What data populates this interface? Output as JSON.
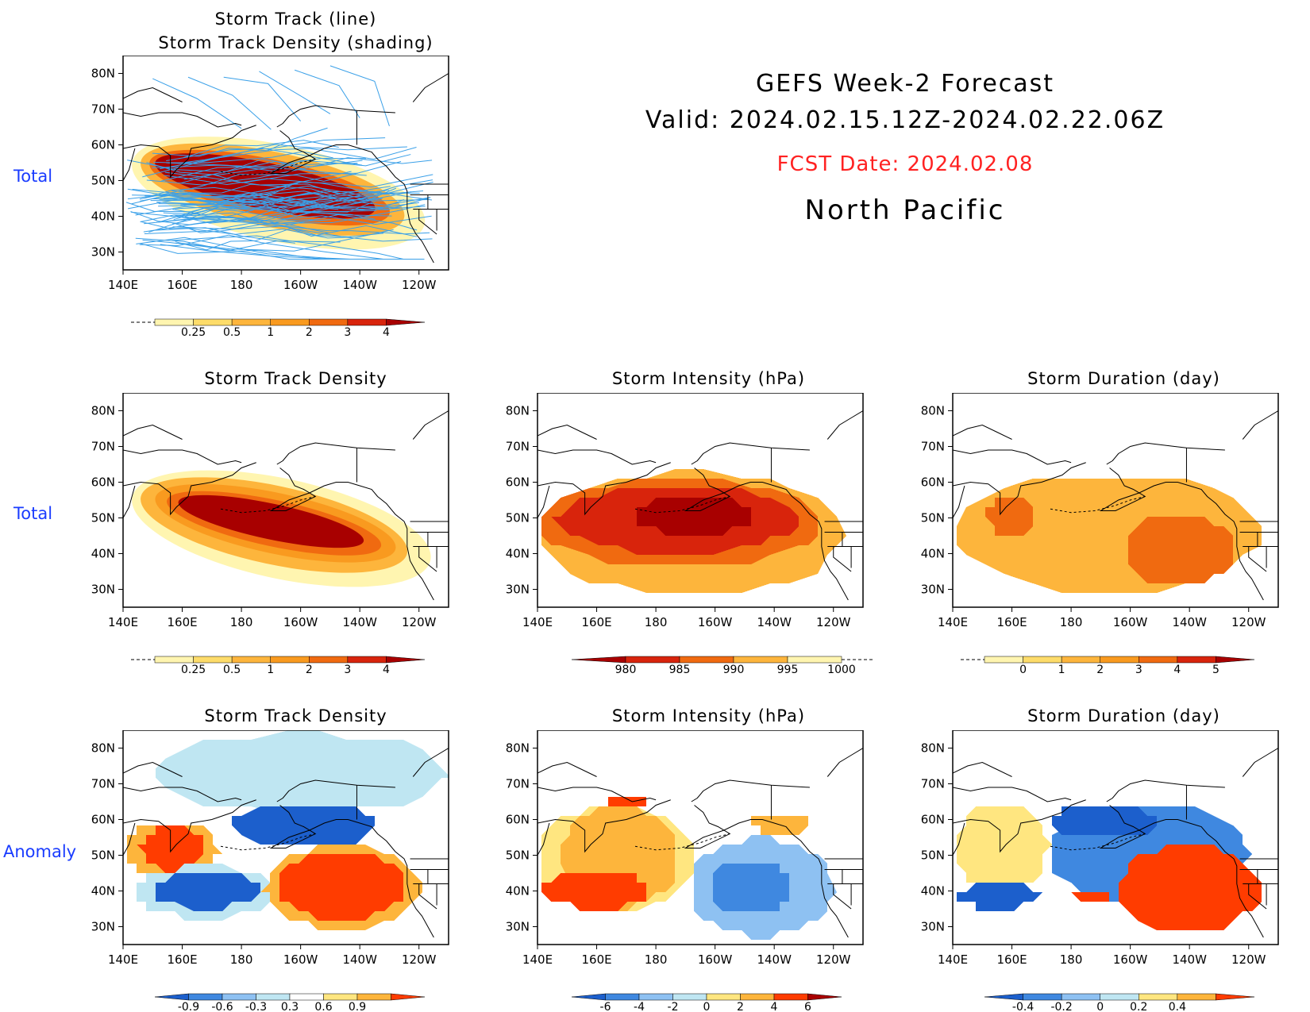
{
  "header": {
    "line1": "GEFS Week-2 Forecast",
    "line2": "Valid: 2024.02.15.12Z-2024.02.22.06Z",
    "fcst_date": "FCST Date: 2024.02.08",
    "region": "North Pacific"
  },
  "row_labels": {
    "total_top": "Total",
    "total_mid": "Total",
    "anomaly": "Anomaly"
  },
  "axes": {
    "lon_ticks": [
      "140E",
      "160E",
      "180",
      "160W",
      "140W",
      "120W"
    ],
    "lat_ticks": [
      "80N",
      "70N",
      "60N",
      "50N",
      "40N",
      "30N"
    ],
    "lon_range": [
      140,
      250
    ],
    "lat_range": [
      25,
      85
    ]
  },
  "panels": {
    "track": {
      "title1": "Storm Track (line)",
      "title2": "Storm Track Density (shading)"
    },
    "density": {
      "title": "Storm Track Density"
    },
    "intensity": {
      "title": "Storm Intensity (hPa)"
    },
    "duration": {
      "title": "Storm Duration (day)"
    },
    "density_anom": {
      "title": "Storm Track Density"
    },
    "intensity_anom": {
      "title": "Storm Intensity (hPa)"
    },
    "duration_anom": {
      "title": "Storm Duration (day)"
    }
  },
  "colorbars": {
    "density": {
      "labels": [
        "0.25",
        "0.5",
        "1",
        "2",
        "3",
        "4"
      ],
      "colors": [
        "#fff5b0",
        "#fddc6a",
        "#fdb53c",
        "#f99a1f",
        "#f06a10",
        "#d8240c",
        "#a80000"
      ]
    },
    "intensity": {
      "labels": [
        "980",
        "985",
        "990",
        "995",
        "1000"
      ],
      "colors": [
        "#a80000",
        "#d8240c",
        "#f06a10",
        "#fdb53c",
        "#fff5b0"
      ]
    },
    "duration": {
      "labels": [
        "0",
        "1",
        "2",
        "3",
        "4",
        "5"
      ],
      "colors": [
        "#fff5b0",
        "#fddc6a",
        "#fdb53c",
        "#f99a1f",
        "#f06a10",
        "#d8240c",
        "#a80000"
      ]
    },
    "density_anom": {
      "labels": [
        "-0.9",
        "-0.6",
        "-0.3",
        "0.3",
        "0.6",
        "0.9"
      ],
      "colors": [
        "#1c5fcc",
        "#3f88e0",
        "#8ec1f2",
        "#bfe6f2",
        "#ffffff",
        "#ffe680",
        "#fdb53c",
        "#ff3c00"
      ]
    },
    "intensity_anom": {
      "labels": [
        "-6",
        "-4",
        "-2",
        "0",
        "2",
        "4",
        "6"
      ],
      "colors": [
        "#1c5fcc",
        "#3f88e0",
        "#8ec1f2",
        "#bfe6f2",
        "#ffe680",
        "#fdb53c",
        "#ff3c00",
        "#a80000"
      ]
    },
    "duration_anom": {
      "labels": [
        "-0.4",
        "-0.2",
        "0",
        "0.2",
        "0.4"
      ],
      "colors": [
        "#1c5fcc",
        "#3f88e0",
        "#8ec1f2",
        "#bfe6f2",
        "#ffe680",
        "#fdb53c",
        "#ff3c00"
      ]
    }
  },
  "chart_data": [
    {
      "type": "heatmap",
      "title": "Storm Track (line) / Storm Track Density (shading)",
      "field": "storm track density with track lines",
      "row": "Total",
      "blobs": [
        {
          "level": "0.25",
          "lon": [
            142,
            243
          ],
          "lat": [
            33,
            60
          ]
        },
        {
          "level": "1",
          "lon": [
            145,
            236
          ],
          "lat": [
            37,
            58
          ]
        },
        {
          "level": "3",
          "lon": [
            148,
            231
          ],
          "lat": [
            40,
            56
          ]
        },
        {
          "level": "4",
          "lon": [
            150,
            226
          ],
          "lat": [
            42,
            55
          ]
        }
      ]
    },
    {
      "type": "heatmap",
      "title": "Storm Track Density",
      "row": "Total",
      "blobs": [
        {
          "level": "0.25",
          "lon": [
            142,
            245
          ],
          "lat": [
            33,
            61
          ]
        },
        {
          "level": "1",
          "lon": [
            145,
            237
          ],
          "lat": [
            37,
            59
          ]
        },
        {
          "level": "2",
          "lon": [
            150,
            233
          ],
          "lat": [
            40,
            57
          ]
        },
        {
          "level": "3",
          "lon": [
            154,
            228
          ],
          "lat": [
            42,
            55
          ]
        },
        {
          "level": "4",
          "lon": [
            158,
            222
          ],
          "lat": [
            44,
            54
          ]
        }
      ]
    },
    {
      "type": "heatmap",
      "title": "Storm Intensity (hPa)",
      "row": "Total",
      "blobs": [
        {
          "level": "995",
          "lon": [
            140,
            243
          ],
          "lat": [
            28,
            63
          ]
        },
        {
          "level": "990",
          "lon": [
            140,
            236
          ],
          "lat": [
            36,
            61
          ]
        },
        {
          "level": "985",
          "lon": [
            146,
            228
          ],
          "lat": [
            40,
            59
          ]
        },
        {
          "level": "980",
          "lon": [
            172,
            213
          ],
          "lat": [
            45,
            56
          ]
        }
      ]
    },
    {
      "type": "heatmap",
      "title": "Storm Duration (day)",
      "row": "Total",
      "blobs": [
        {
          "level": "2",
          "lon": [
            140,
            244
          ],
          "lat": [
            29,
            62
          ]
        },
        {
          "level": "3",
          "lon": [
            198,
            235
          ],
          "lat": [
            31,
            51
          ]
        },
        {
          "level": "3",
          "lon": [
            152,
            168
          ],
          "lat": [
            44,
            57
          ]
        }
      ]
    },
    {
      "type": "heatmap",
      "title": "Storm Track Density",
      "row": "Anomaly",
      "blobs": [
        {
          "level": "-0.3",
          "lon": [
            150,
            250
          ],
          "lat": [
            62,
            84
          ]
        },
        {
          "level": "-0.6",
          "lon": [
            177,
            225
          ],
          "lat": [
            52,
            65
          ]
        },
        {
          "level": "0.6",
          "lon": [
            141,
            172
          ],
          "lat": [
            44,
            59
          ]
        },
        {
          "level": "0.9",
          "lon": [
            146,
            167
          ],
          "lat": [
            46,
            58
          ]
        },
        {
          "level": "-0.3",
          "lon": [
            145,
            190
          ],
          "lat": [
            32,
            47
          ]
        },
        {
          "level": "-0.6",
          "lon": [
            150,
            186
          ],
          "lat": [
            35,
            45
          ]
        },
        {
          "level": "0.6",
          "lon": [
            188,
            241
          ],
          "lat": [
            29,
            53
          ]
        },
        {
          "level": "0.9",
          "lon": [
            192,
            236
          ],
          "lat": [
            32,
            51
          ]
        }
      ]
    },
    {
      "type": "heatmap",
      "title": "Storm Intensity (hPa)",
      "row": "Anomaly",
      "blobs": [
        {
          "level": "0",
          "lon": [
            140,
            192
          ],
          "lat": [
            34,
            64
          ]
        },
        {
          "level": "2",
          "lon": [
            148,
            188
          ],
          "lat": [
            35,
            64
          ]
        },
        {
          "level": "4",
          "lon": [
            142,
            178
          ],
          "lat": [
            35,
            45
          ]
        },
        {
          "level": "6",
          "lon": [
            164,
            178
          ],
          "lat": [
            63,
            66
          ]
        },
        {
          "level": "-2",
          "lon": [
            192,
            240
          ],
          "lat": [
            27,
            55
          ]
        },
        {
          "level": "-4",
          "lon": [
            198,
            225
          ],
          "lat": [
            33,
            49
          ]
        },
        {
          "level": "2",
          "lon": [
            212,
            232
          ],
          "lat": [
            56,
            62
          ]
        }
      ]
    },
    {
      "type": "heatmap",
      "title": "Storm Duration (day)",
      "row": "Anomaly",
      "blobs": [
        {
          "level": "0.2",
          "lon": [
            140,
            172
          ],
          "lat": [
            40,
            64
          ]
        },
        {
          "level": "-0.2",
          "lon": [
            172,
            240
          ],
          "lat": [
            36,
            65
          ]
        },
        {
          "level": "-0.4",
          "lon": [
            172,
            210
          ],
          "lat": [
            55,
            64
          ]
        },
        {
          "level": "-0.4",
          "lon": [
            142,
            169
          ],
          "lat": [
            35,
            42
          ]
        },
        {
          "level": "0.4",
          "lon": [
            196,
            244
          ],
          "lat": [
            28,
            53
          ]
        },
        {
          "level": "0.4",
          "lon": [
            179,
            196
          ],
          "lat": [
            38,
            40
          ]
        }
      ]
    }
  ]
}
